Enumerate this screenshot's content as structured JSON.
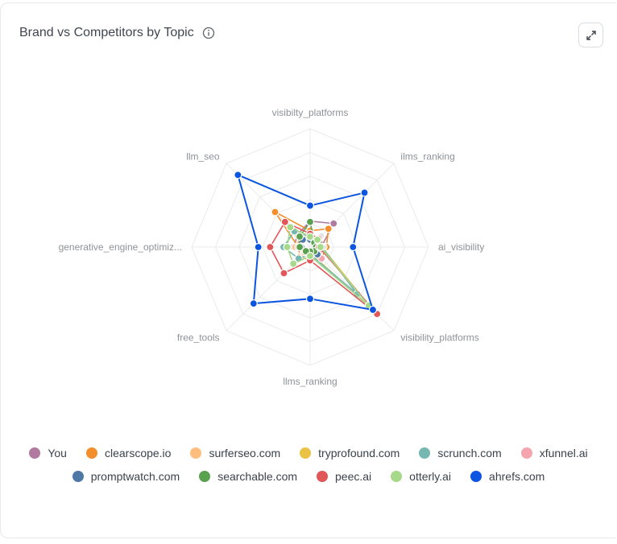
{
  "card": {
    "title": "Brand vs Competitors by Topic"
  },
  "icons": {
    "info": "info-icon",
    "expand": "expand-icon"
  },
  "chart_data": {
    "type": "radar",
    "title": "Brand vs Competitors by Topic",
    "axes": [
      "visibilty_platforms",
      "ilms_ranking",
      "ai_visibility",
      "visibility_platforms",
      "llms_ranking",
      "free_tools",
      "generative_engine_optimiz...",
      "llm_seo"
    ],
    "max": 160,
    "series": [
      {
        "name": "You",
        "color": "#b07aa1",
        "values": [
          35,
          45,
          15,
          18,
          10,
          14,
          22,
          24
        ]
      },
      {
        "name": "clearscope.io",
        "color": "#f28e2b",
        "values": [
          22,
          35,
          22,
          22,
          18,
          18,
          16,
          67
        ]
      },
      {
        "name": "surferseo.com",
        "color": "#ffbe7d",
        "values": [
          15,
          20,
          18,
          18,
          12,
          12,
          20,
          18
        ]
      },
      {
        "name": "tryprofound.com",
        "color": "#e9c246",
        "values": [
          18,
          16,
          16,
          115,
          8,
          12,
          14,
          24
        ]
      },
      {
        "name": "scrunch.com",
        "color": "#76b7b2",
        "values": [
          14,
          20,
          16,
          90,
          10,
          22,
          36,
          30
        ]
      },
      {
        "name": "xfunnel.ai",
        "color": "#f4a5ae",
        "values": [
          12,
          18,
          14,
          22,
          8,
          10,
          16,
          20
        ]
      },
      {
        "name": "promptwatch.com",
        "color": "#4e79a7",
        "values": [
          10,
          12,
          10,
          14,
          8,
          8,
          12,
          14
        ]
      },
      {
        "name": "searchable.com",
        "color": "#59a14f",
        "values": [
          34,
          8,
          8,
          8,
          6,
          8,
          14,
          20
        ]
      },
      {
        "name": "peec.ai",
        "color": "#e15759",
        "values": [
          18,
          16,
          12,
          128,
          18,
          50,
          54,
          48
        ]
      },
      {
        "name": "otterly.ai",
        "color": "#a6d98a",
        "values": [
          14,
          14,
          14,
          112,
          12,
          32,
          31,
          38
        ]
      },
      {
        "name": "ahrefs.com",
        "color": "#0b55e0",
        "values": [
          56,
          104,
          58,
          120,
          70,
          108,
          70,
          138
        ]
      }
    ]
  }
}
